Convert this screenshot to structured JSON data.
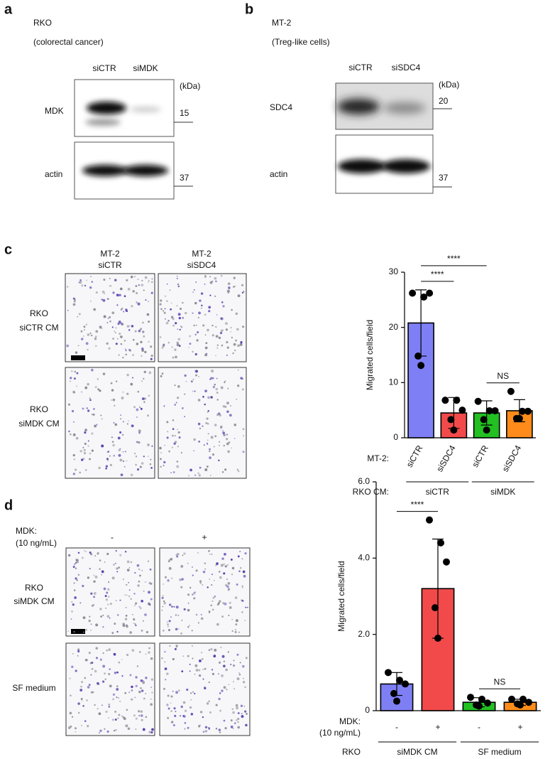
{
  "panels": {
    "a": {
      "label": "a",
      "title": "RKO",
      "subtitle": "(colorectal cancer)",
      "lanes": [
        "siCTR",
        "siMDK"
      ],
      "unit": "(kDa)",
      "rows": [
        {
          "name": "MDK",
          "marker": "15"
        },
        {
          "name": "actin",
          "marker": "37"
        }
      ]
    },
    "b": {
      "label": "b",
      "title": "MT-2",
      "subtitle": "(Treg-like cells)",
      "lanes": [
        "siCTR",
        "siSDC4"
      ],
      "unit": "(kDa)",
      "rows": [
        {
          "name": "SDC4",
          "marker": "20"
        },
        {
          "name": "actin",
          "marker": "37"
        }
      ]
    },
    "c": {
      "label": "c",
      "columns": [
        [
          "MT-2",
          "siCTR"
        ],
        [
          "MT-2",
          "siSDC4"
        ]
      ],
      "rows": [
        [
          "RKO",
          "siCTR CM"
        ],
        [
          "RKO",
          "siMDK CM"
        ]
      ]
    },
    "d": {
      "label": "d",
      "condition": [
        "MDK:",
        "(10 ng/mL)"
      ],
      "columns": [
        "-",
        "+"
      ],
      "rows": [
        [
          "RKO",
          "siMDK CM"
        ],
        [
          "SF medium"
        ]
      ]
    }
  },
  "chart_data": [
    {
      "type": "bar",
      "ylabel": "Migrated cells/field",
      "category_label": [
        "MT-2:"
      ],
      "categories": [
        "siCTR",
        "siSDC4",
        "siCTR",
        "siSDC4"
      ],
      "group_label": "RKO CM:",
      "groups": [
        "siCTR",
        "siMDK"
      ],
      "values": [
        20.8,
        4.5,
        4.5,
        4.9
      ],
      "errors": [
        6.0,
        2.8,
        2.2,
        2.0
      ],
      "points": [
        [
          26.2,
          25.5,
          26.2,
          14.8,
          13.1
        ],
        [
          6.8,
          6.8,
          5.0,
          3.3,
          1.4
        ],
        [
          6.6,
          4.9,
          4.9,
          3.3,
          1.4
        ],
        [
          8.4,
          4.8,
          4.8,
          3.5,
          3.5
        ]
      ],
      "colors": [
        "#7f7ff5",
        "#f24a4a",
        "#22c022",
        "#ff8c1a"
      ],
      "ylim": [
        0,
        30
      ],
      "yticks": [
        0,
        10,
        20,
        30
      ],
      "annotations": [
        {
          "text": "****",
          "between": [
            0,
            1
          ]
        },
        {
          "text": "****",
          "between": [
            0,
            2
          ]
        },
        {
          "text": "NS",
          "between": [
            2,
            3
          ]
        }
      ]
    },
    {
      "type": "bar",
      "ylabel": "Migrated cells/field",
      "category_label": [
        "MDK:",
        "(10 ng/mL)"
      ],
      "categories": [
        "-",
        "+",
        "-",
        "+"
      ],
      "group_label": "RKO",
      "groups": [
        "siMDK CM",
        "SF medium"
      ],
      "values": [
        0.7,
        3.2,
        0.22,
        0.22
      ],
      "errors": [
        0.3,
        1.3,
        0.12,
        0.08
      ],
      "points": [
        [
          1.0,
          0.8,
          0.7,
          0.45,
          0.25
        ],
        [
          5.0,
          4.4,
          3.9,
          2.7,
          1.9
        ],
        [
          0.35,
          0.3,
          0.2,
          0.15,
          0.12
        ],
        [
          0.3,
          0.3,
          0.22,
          0.18,
          0.15
        ]
      ],
      "colors": [
        "#7f7ff5",
        "#f24a4a",
        "#22c022",
        "#ff8c1a"
      ],
      "ylim": [
        0,
        6
      ],
      "yticks": [
        0,
        {
          "value": 2,
          "label": "2.0"
        },
        {
          "value": 4,
          "label": "4.0"
        },
        {
          "value": 6,
          "label": "6.0"
        }
      ],
      "annotations": [
        {
          "text": "****",
          "between": [
            0,
            1
          ]
        },
        {
          "text": "NS",
          "between": [
            2,
            3
          ]
        }
      ]
    }
  ]
}
